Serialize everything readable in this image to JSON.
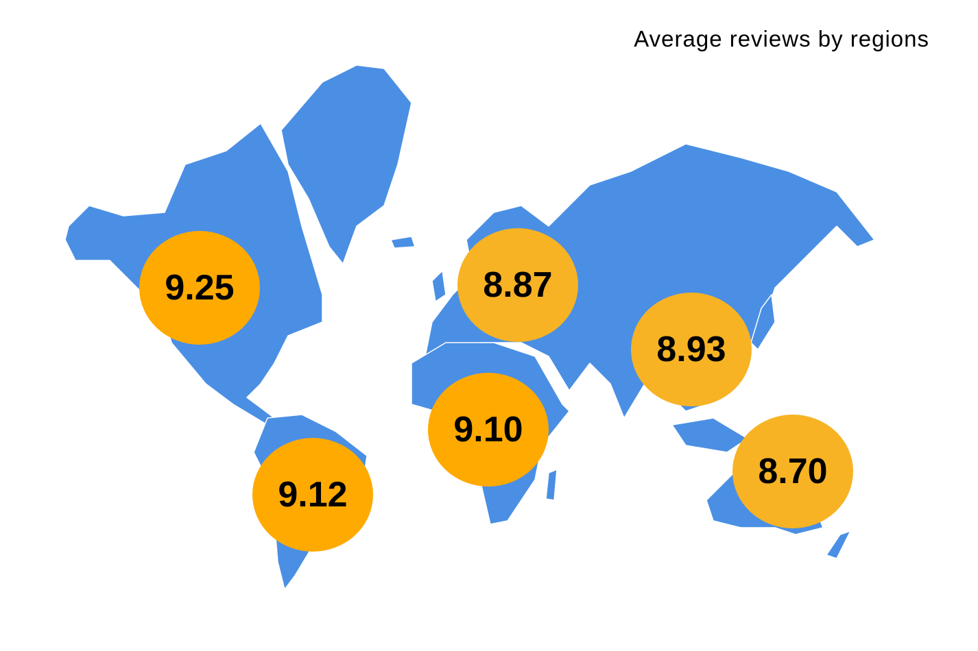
{
  "chart_data": {
    "type": "bubble-map",
    "title": "Average reviews by regions",
    "values": [
      9.25,
      8.87,
      8.93,
      9.1,
      9.12,
      8.7
    ],
    "value_labels": [
      "9.25",
      "8.87",
      "8.93",
      "9.10",
      "9.12",
      "8.70"
    ],
    "colors": [
      "#ffaa00",
      "#f7b324",
      "#f7b324",
      "#ffaa00",
      "#ffaa00",
      "#f7b324"
    ],
    "map_color": "#4a8fe4"
  }
}
